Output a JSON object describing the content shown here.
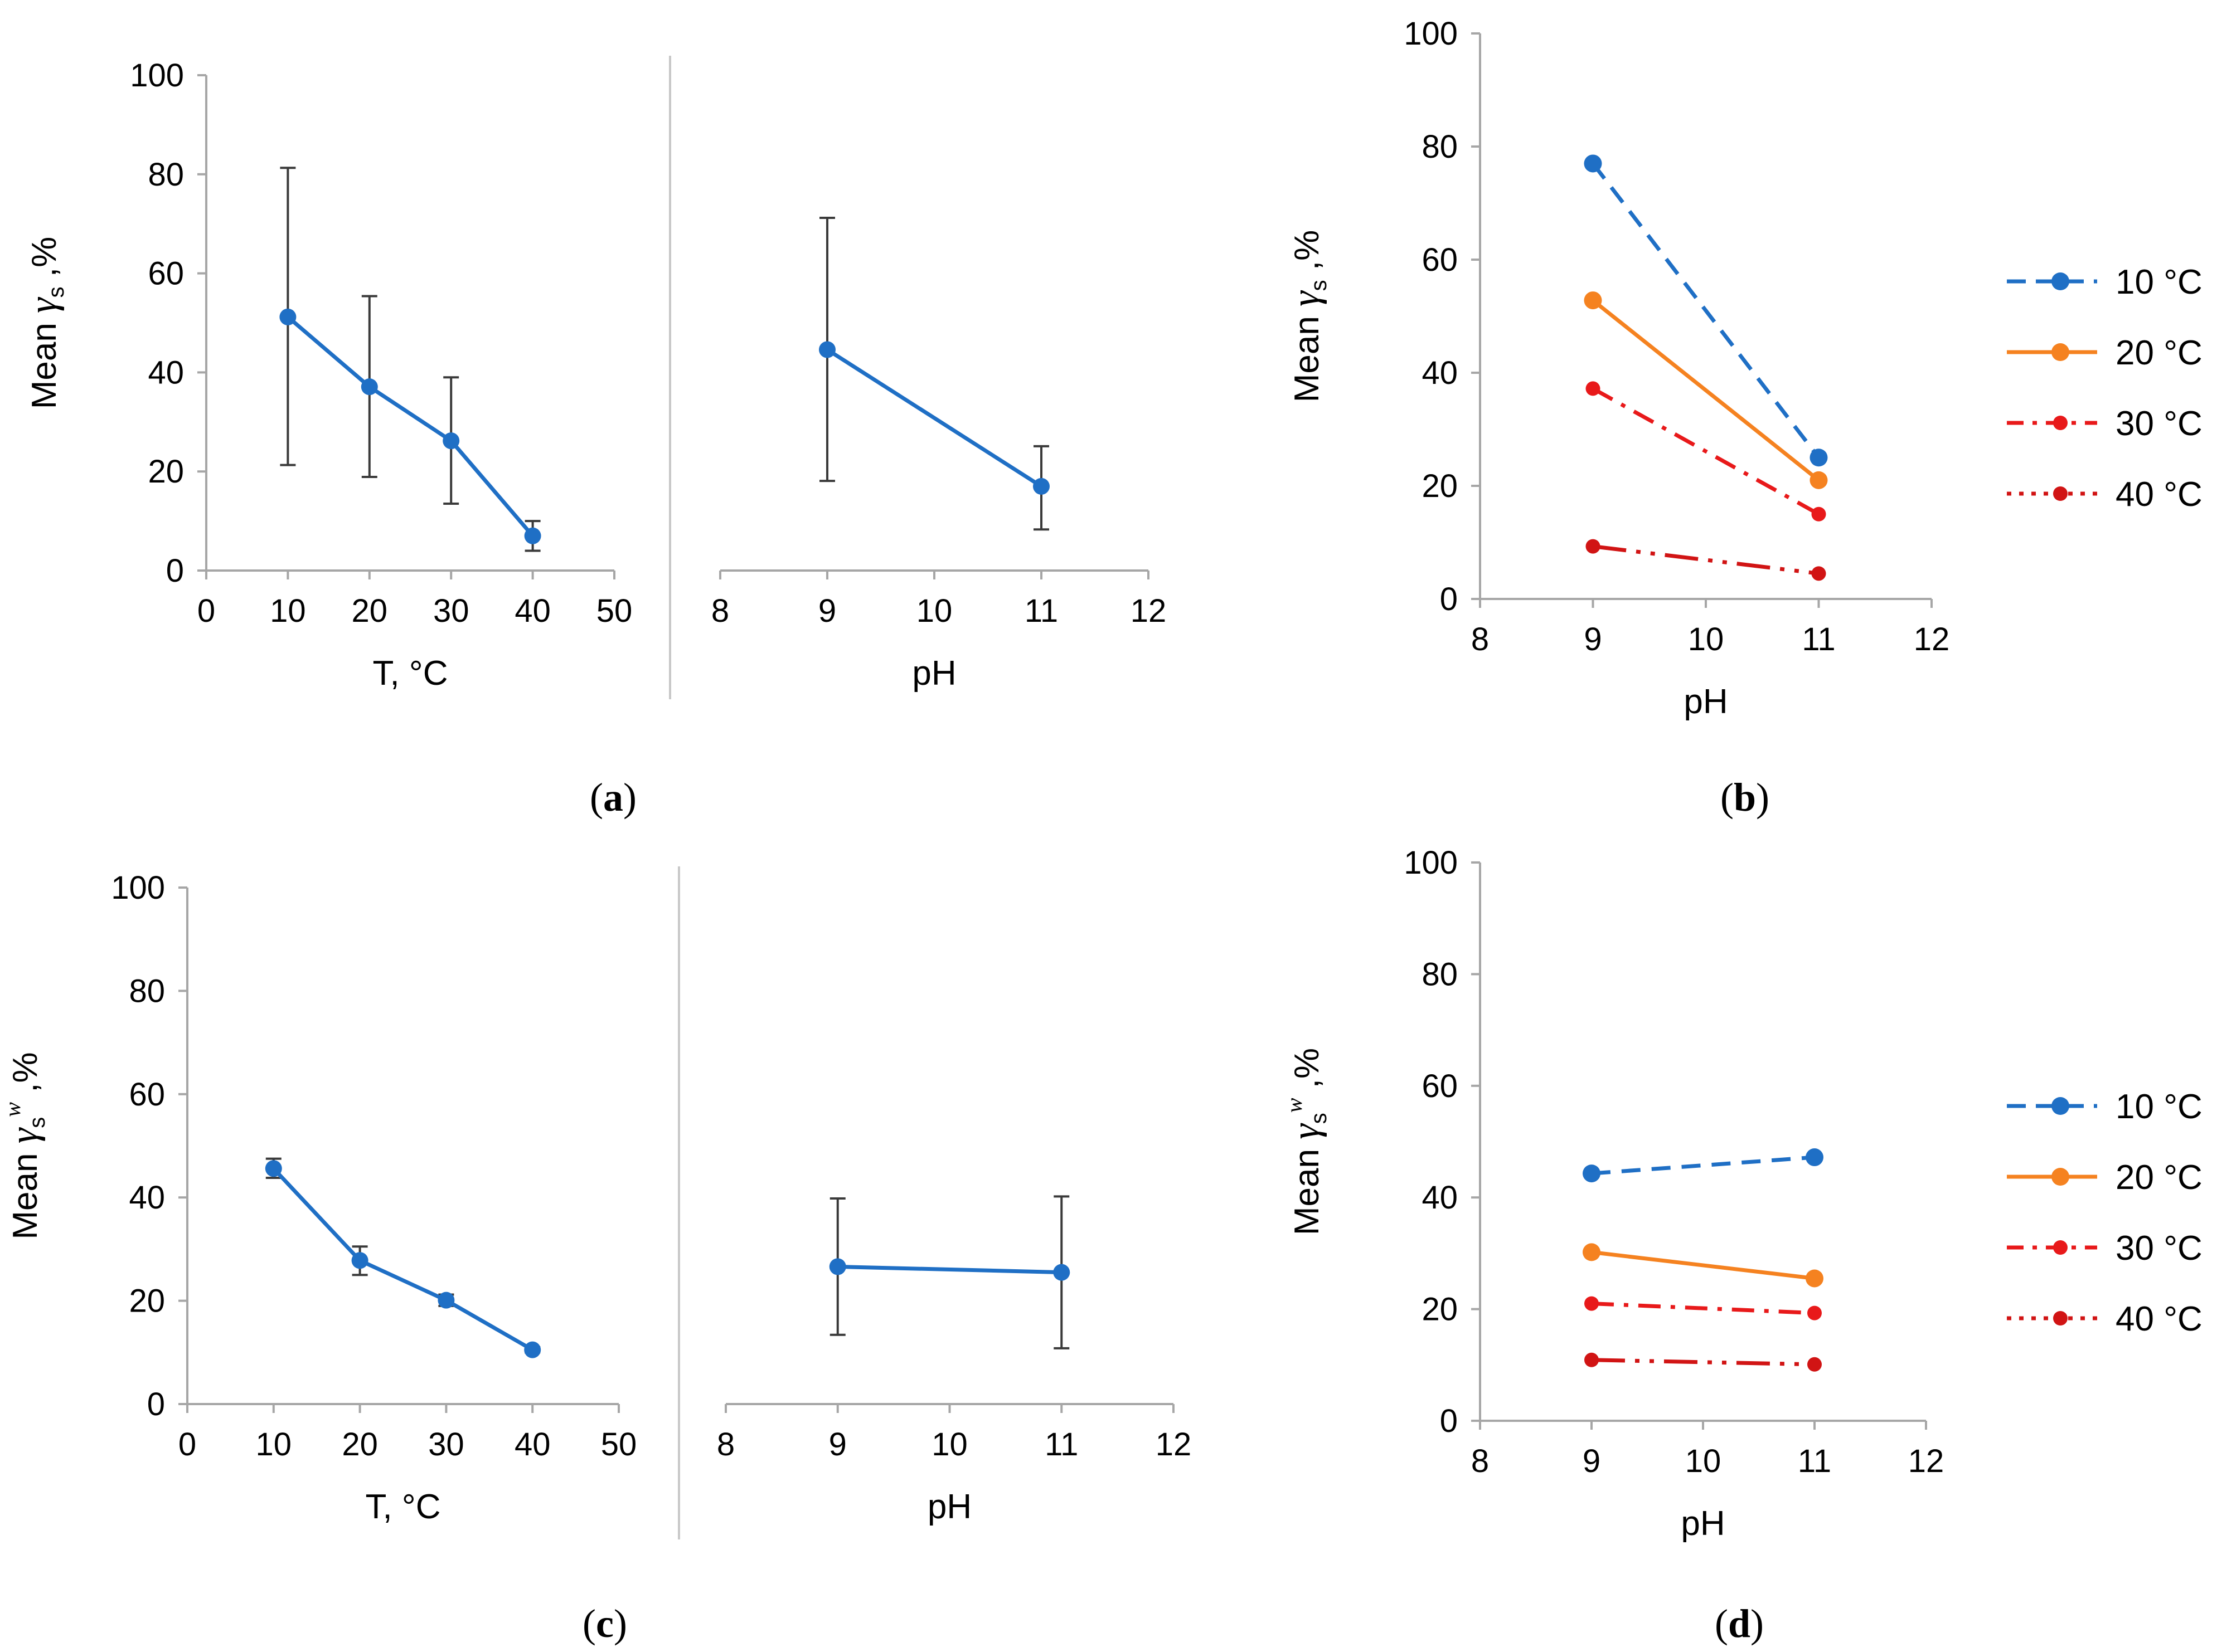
{
  "colors": {
    "blue": "#1f6fc5",
    "orange": "#f58220",
    "red": "#e8191a",
    "darkred": "#d11414",
    "axis": "#a6a6a6",
    "errbar": "#3a3a3a",
    "divider": "#c8c8c8"
  },
  "icons": {
    "marker": "filled-circle"
  },
  "chart_data": [
    {
      "panel": "a",
      "part": "temperature",
      "type": "line",
      "panel_label": "a",
      "xlabel": "T,  °C",
      "ylabel": {
        "prefix": "Mean ",
        "symbol": "γ",
        "sub": "s",
        "sup": "",
        "suffix": " ,%"
      },
      "xlim": [
        0,
        50
      ],
      "ylim": [
        0,
        100
      ],
      "xticks": [
        "0",
        "10",
        "20",
        "30",
        "40",
        "50"
      ],
      "yticks": [
        "0",
        "20",
        "40",
        "60",
        "80",
        "100"
      ],
      "series": [
        {
          "name": "mean",
          "x": [
            10,
            20,
            30,
            40
          ],
          "y": [
            51.2,
            37.1,
            26.2,
            7.0
          ],
          "err_low": [
            21.3,
            18.9,
            13.5,
            4.0
          ],
          "err_high": [
            81.3,
            55.4,
            39.0,
            10.0
          ],
          "color": "#1f6fc5",
          "dash": "solid"
        }
      ]
    },
    {
      "panel": "a",
      "part": "ph",
      "type": "line",
      "xlabel": "pH",
      "xlim": [
        8,
        12
      ],
      "ylim": [
        0,
        100
      ],
      "xticks": [
        "8",
        "9",
        "10",
        "11",
        "12"
      ],
      "series": [
        {
          "name": "mean",
          "x": [
            9,
            11
          ],
          "y": [
            44.6,
            17.0
          ],
          "err_low": [
            18.1,
            8.3
          ],
          "err_high": [
            71.2,
            25.1
          ],
          "color": "#1f6fc5",
          "dash": "solid"
        }
      ]
    },
    {
      "panel": "b",
      "type": "line",
      "panel_label": "b",
      "xlabel": "pH",
      "ylabel": {
        "prefix": "Mean ",
        "symbol": "γ",
        "sub": "s",
        "sup": "",
        "suffix": " ,%"
      },
      "xlim": [
        8,
        12
      ],
      "ylim": [
        0,
        100
      ],
      "xticks": [
        "8",
        "9",
        "10",
        "11",
        "12"
      ],
      "yticks": [
        "0",
        "20",
        "40",
        "60",
        "80",
        "100"
      ],
      "legend_position": "right",
      "series": [
        {
          "name": "10 °C",
          "x": [
            9,
            11
          ],
          "y": [
            77.0,
            25.0
          ],
          "color": "#1f6fc5",
          "dash": "dash",
          "marker": "large"
        },
        {
          "name": "20 °C",
          "x": [
            9,
            11
          ],
          "y": [
            52.8,
            21.0
          ],
          "color": "#f58220",
          "dash": "solid",
          "marker": "large"
        },
        {
          "name": "30 °C",
          "x": [
            9,
            11
          ],
          "y": [
            37.2,
            15.0
          ],
          "color": "#e8191a",
          "dash": "dashdot",
          "marker": "small"
        },
        {
          "name": "40 °C",
          "x": [
            9,
            11
          ],
          "y": [
            9.3,
            4.5
          ],
          "color": "#d11414",
          "dash": "longdashdot",
          "marker": "small"
        }
      ]
    },
    {
      "panel": "c",
      "part": "temperature",
      "type": "line",
      "panel_label": "c",
      "xlabel": "T,  °C",
      "ylabel": {
        "prefix": "Mean ",
        "symbol": "γ",
        "sub": "s",
        "sup": "w",
        "suffix": " ,%"
      },
      "xlim": [
        0,
        50
      ],
      "ylim": [
        0,
        100
      ],
      "xticks": [
        "0",
        "10",
        "20",
        "30",
        "40",
        "50"
      ],
      "yticks": [
        "0",
        "20",
        "40",
        "60",
        "80",
        "100"
      ],
      "series": [
        {
          "name": "mean",
          "x": [
            10,
            20,
            30,
            40
          ],
          "y": [
            45.6,
            27.8,
            20.1,
            10.5
          ],
          "err_low": [
            43.8,
            25.0,
            19.0,
            10.0
          ],
          "err_high": [
            47.5,
            30.5,
            21.2,
            11.0
          ],
          "color": "#1f6fc5",
          "dash": "solid"
        }
      ]
    },
    {
      "panel": "c",
      "part": "ph",
      "type": "line",
      "xlabel": "pH",
      "xlim": [
        8,
        12
      ],
      "ylim": [
        0,
        100
      ],
      "xticks": [
        "8",
        "9",
        "10",
        "11",
        "12"
      ],
      "series": [
        {
          "name": "mean",
          "x": [
            9,
            11
          ],
          "y": [
            26.6,
            25.5
          ],
          "err_low": [
            13.4,
            10.8
          ],
          "err_high": [
            39.8,
            40.2
          ],
          "color": "#1f6fc5",
          "dash": "solid"
        }
      ]
    },
    {
      "panel": "d",
      "type": "line",
      "panel_label": "d",
      "xlabel": "pH",
      "ylabel": {
        "prefix": "Mean ",
        "symbol": "γ",
        "sub": "s",
        "sup": "w",
        "suffix": " ,%"
      },
      "xlim": [
        8,
        12
      ],
      "ylim": [
        0,
        100
      ],
      "xticks": [
        "8",
        "9",
        "10",
        "11",
        "12"
      ],
      "yticks": [
        "0",
        "20",
        "40",
        "60",
        "80",
        "100"
      ],
      "legend_position": "right",
      "series": [
        {
          "name": "10 °C",
          "x": [
            9,
            11
          ],
          "y": [
            44.3,
            47.2
          ],
          "color": "#1f6fc5",
          "dash": "dash",
          "marker": "large"
        },
        {
          "name": "20 °C",
          "x": [
            9,
            11
          ],
          "y": [
            30.2,
            25.5
          ],
          "color": "#f58220",
          "dash": "solid",
          "marker": "large"
        },
        {
          "name": "30 °C",
          "x": [
            9,
            11
          ],
          "y": [
            21.0,
            19.3
          ],
          "color": "#e8191a",
          "dash": "dashdot",
          "marker": "small"
        },
        {
          "name": "40 °C",
          "x": [
            9,
            11
          ],
          "y": [
            10.9,
            10.1
          ],
          "color": "#d11414",
          "dash": "longdashdot",
          "marker": "small"
        }
      ]
    }
  ]
}
